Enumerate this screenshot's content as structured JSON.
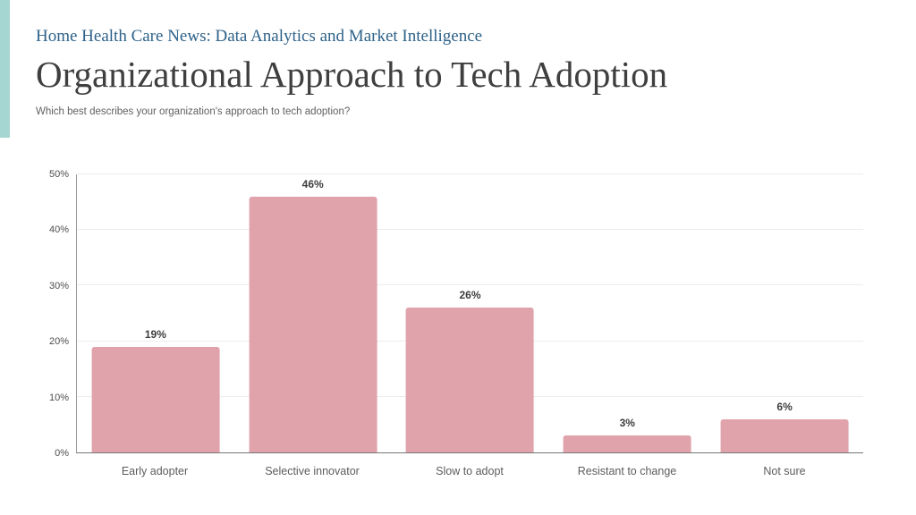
{
  "page": {
    "accent_bar_color": "#a6d6d1",
    "background_color": "#ffffff"
  },
  "header": {
    "eyebrow": "Home Health Care News: Data Analytics and Market Intelligence",
    "eyebrow_color": "#2e6289",
    "title": "Organizational Approach to Tech Adoption",
    "title_color": "#3f3f3f",
    "question": "Which best describes your organization's approach to tech adoption?"
  },
  "chart_data": {
    "type": "bar",
    "title": "Organizational Approach to Tech Adoption",
    "subtitle": "Which best describes your organization's approach to tech adoption?",
    "categories": [
      "Early adopter",
      "Selective innovator",
      "Slow to adopt",
      "Resistant to change",
      "Not sure"
    ],
    "values": [
      19,
      46,
      26,
      3,
      6
    ],
    "value_labels": [
      "19%",
      "46%",
      "26%",
      "3%",
      "6%"
    ],
    "xlabel": "",
    "ylabel": "",
    "ylim": [
      0,
      50
    ],
    "ytick_labels": [
      "0%",
      "10%",
      "20%",
      "30%",
      "40%",
      "50%"
    ],
    "ytick_values": [
      0,
      10,
      20,
      30,
      40,
      50
    ],
    "grid": "horizontal",
    "legend": "none",
    "bar_color": "#e0a3ab",
    "value_label_color": "#3d3d3d",
    "category_label_color": "#5c5c5c",
    "gridline_color": "#ececec",
    "axis_color": "#9a9a9a"
  }
}
